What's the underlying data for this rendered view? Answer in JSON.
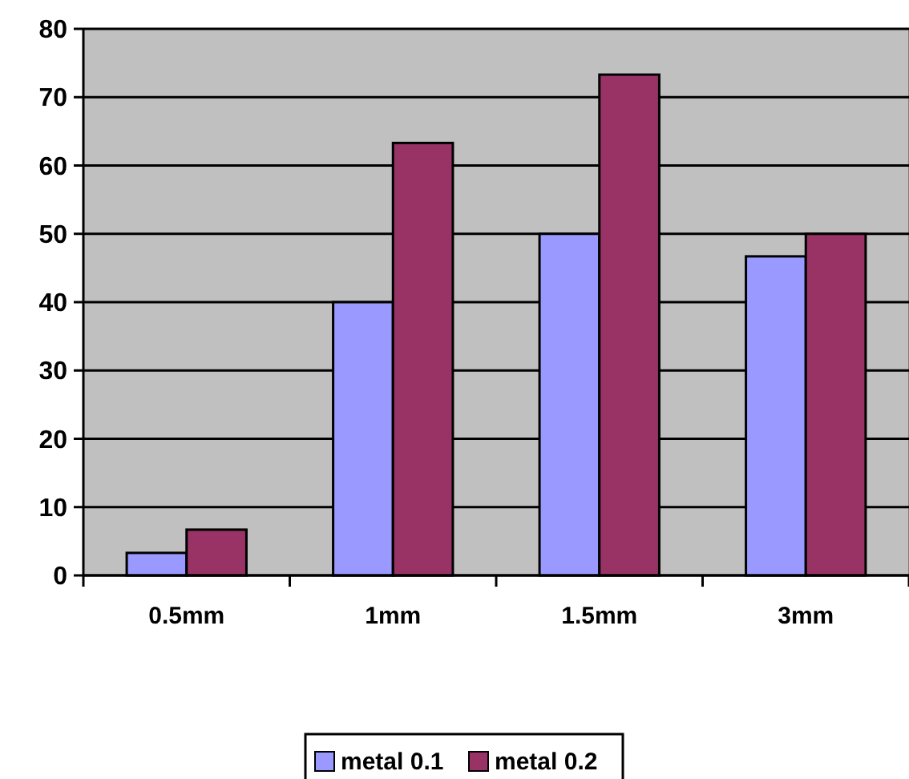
{
  "chart_data": {
    "type": "bar",
    "categories": [
      "0.5mm",
      "1mm",
      "1.5mm",
      "3mm"
    ],
    "series": [
      {
        "name": "metal 0.1",
        "color": "#9999ff",
        "values": [
          3.3,
          40,
          50,
          46.7
        ]
      },
      {
        "name": "metal 0.2",
        "color": "#993366",
        "values": [
          6.7,
          63.3,
          73.3,
          50
        ]
      }
    ],
    "ylim": [
      0,
      80
    ],
    "yticks": [
      0,
      10,
      20,
      30,
      40,
      50,
      60,
      70,
      80
    ],
    "grid": "y",
    "legend": "bottom"
  }
}
